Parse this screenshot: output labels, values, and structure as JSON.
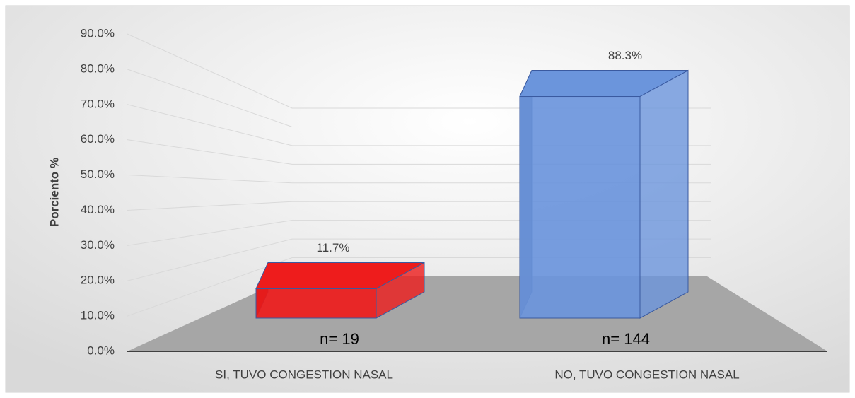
{
  "chart_data": {
    "type": "bar3d",
    "y_label": "Porciento %",
    "categories": [
      "SI, TUVO CONGESTION NASAL",
      "NO, TUVO CONGESTION NASAL"
    ],
    "values": [
      11.7,
      88.3
    ],
    "value_labels": [
      "11.7%",
      "88.3%"
    ],
    "colors": [
      "#ee1c1c",
      "#6b95dc"
    ],
    "annotations": [
      "n= 19",
      "n= 144"
    ],
    "ylim": [
      0,
      90
    ],
    "yticks": [
      {
        "value": 0,
        "label": "0.0%"
      },
      {
        "value": 10,
        "label": "10.0%"
      },
      {
        "value": 20,
        "label": "20.0%"
      },
      {
        "value": 30,
        "label": "30.0%"
      },
      {
        "value": 40,
        "label": "40.0%"
      },
      {
        "value": 50,
        "label": "50.0%"
      },
      {
        "value": 60,
        "label": "60.0%"
      },
      {
        "value": 70,
        "label": "70.0%"
      },
      {
        "value": 80,
        "label": "80.0%"
      },
      {
        "value": 90,
        "label": "90.0%"
      }
    ],
    "grid": true
  }
}
